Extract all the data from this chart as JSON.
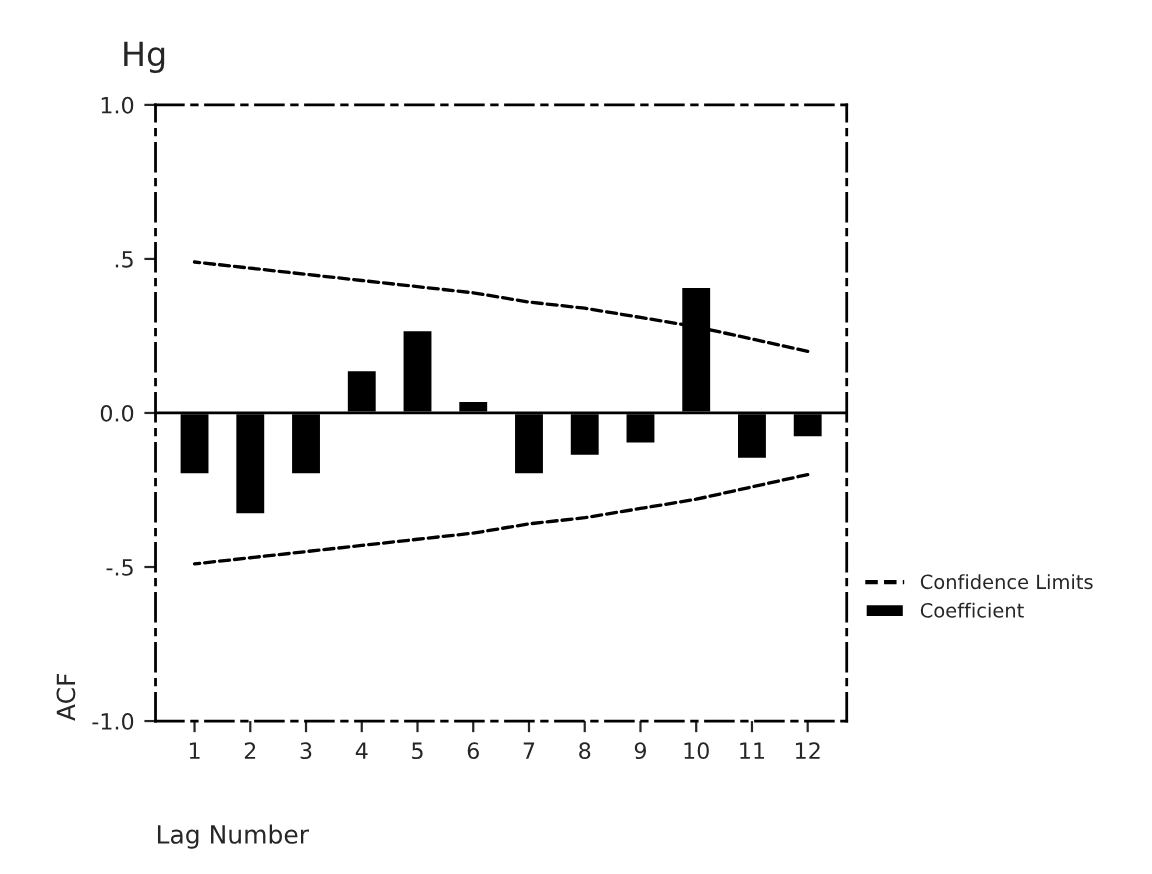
{
  "chart_data": {
    "type": "bar",
    "title": "Hg",
    "xlabel": "Lag Number",
    "ylabel": "ACF",
    "categories": [
      "1",
      "2",
      "3",
      "4",
      "5",
      "6",
      "7",
      "8",
      "9",
      "10",
      "11",
      "12"
    ],
    "series": [
      {
        "name": "Coefficient",
        "color": "#000000",
        "values": [
          -0.2,
          -0.33,
          -0.2,
          0.14,
          0.27,
          0.04,
          -0.2,
          -0.14,
          -0.1,
          0.41,
          -0.15,
          -0.08
        ]
      },
      {
        "name": "Confidence Limits",
        "type": "line",
        "color": "#000000",
        "line_style": "dashed",
        "values": [
          0.49,
          0.47,
          0.45,
          0.43,
          0.41,
          0.39,
          0.36,
          0.34,
          0.31,
          0.28,
          0.24,
          0.2
        ]
      },
      {
        "type": "line",
        "color": "#000000",
        "line_style": "dashed",
        "values": [
          -0.49,
          -0.47,
          -0.45,
          -0.43,
          -0.41,
          -0.39,
          -0.36,
          -0.34,
          -0.31,
          -0.28,
          -0.24,
          -0.2
        ]
      }
    ],
    "ylim": [
      -1.0,
      1.0
    ],
    "yticks": [
      {
        "value": 1.0,
        "label": "1.0"
      },
      {
        "value": 0.5,
        "label": ".5"
      },
      {
        "value": 0,
        "label": "0.0"
      },
      {
        "value": -0.5,
        "label": "-.5"
      },
      {
        "value": -1.0,
        "label": "-1.0"
      }
    ],
    "ref_lines": [
      {
        "axis": "y",
        "value": 0,
        "color": "#000000"
      }
    ],
    "grid": false,
    "legend": "right"
  }
}
